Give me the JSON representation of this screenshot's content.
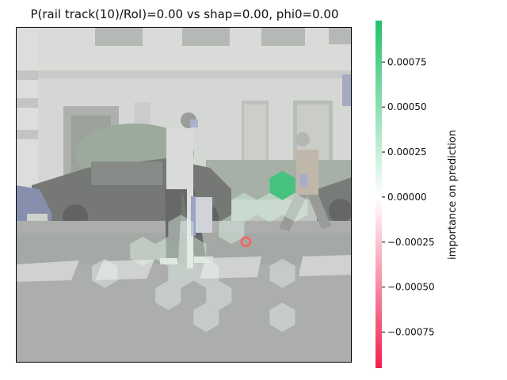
{
  "chart_data": {
    "type": "heatmap",
    "title": "P(rail track(10)/RoI)=0.00 vs shap=0.00, phi0=0.00",
    "colorbar": {
      "label": "importance on prediction",
      "range": [
        -0.00095,
        0.00098
      ],
      "ticks": [
        0.00075,
        0.0005,
        0.00025,
        0.0,
        -0.00025,
        -0.0005,
        -0.00075
      ],
      "tick_labels": [
        "0.00075",
        "0.00050",
        "0.00025",
        "0.00000",
        "−0.00025",
        "−0.00050",
        "−0.00075"
      ],
      "colors": {
        "positive": "#22c06a",
        "zero": "#ffffff",
        "negative": "#f02050"
      }
    },
    "hexagons": [
      {
        "col": 10,
        "row": 7,
        "value": 0.00088
      },
      {
        "col": 9,
        "row": 8,
        "value": 0.0002
      },
      {
        "col": 11,
        "row": 8,
        "value": 0.00015
      },
      {
        "col": 10,
        "row": 8,
        "value": 0.0002
      },
      {
        "col": 8,
        "row": 9,
        "value": 0.00015
      },
      {
        "col": 6,
        "row": 9,
        "value": 0.0001
      },
      {
        "col": 5,
        "row": 10,
        "value": 0.00012
      },
      {
        "col": 6,
        "row": 10,
        "value": 0.00016
      },
      {
        "col": 7,
        "row": 10,
        "value": 0.0001
      },
      {
        "col": 6,
        "row": 11,
        "value": 0.0001
      },
      {
        "col": 7,
        "row": 11,
        "value": 8e-05
      },
      {
        "col": 3,
        "row": 11,
        "value": 6e-05
      },
      {
        "col": 10,
        "row": 11,
        "value": 7e-05
      },
      {
        "col": 6,
        "row": 12,
        "value": 8e-05
      },
      {
        "col": 8,
        "row": 12,
        "value": 6e-05
      },
      {
        "col": 7,
        "row": 13,
        "value": 6e-05
      },
      {
        "col": 10,
        "row": 13,
        "value": 5e-05
      }
    ],
    "roi_marker": {
      "x": 0.685,
      "y": 0.64
    }
  }
}
